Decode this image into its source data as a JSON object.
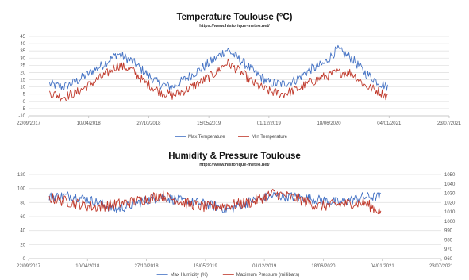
{
  "chart_data": [
    {
      "type": "line",
      "title": "Temperature Toulouse (°C)",
      "subtitle": "https://www.historique-meteo.net/",
      "x_ticks": [
        "22/09/2017",
        "10/04/2018",
        "27/10/2018",
        "15/05/2019",
        "01/12/2019",
        "18/06/2020",
        "04/01/2021",
        "23/07/2021"
      ],
      "xlim": [
        "2017-09-22",
        "2021-07-23"
      ],
      "y_ticks": [
        "-10",
        "-5",
        "0",
        "5",
        "10",
        "15",
        "20",
        "25",
        "30",
        "35",
        "40",
        "45"
      ],
      "ylim": [
        -10,
        45
      ],
      "legend_position": "bottom",
      "grid": "horizontal",
      "colors": {
        "max": "#4472c4",
        "min": "#c0392b"
      },
      "data_start": "2017-12-01",
      "data_end": "2021-01-01",
      "series": [
        {
          "name": "Max Temperature",
          "x": [
            "2017-12-01",
            "2018-01-15",
            "2018-03-01",
            "2018-04-15",
            "2018-06-01",
            "2018-07-15",
            "2018-09-01",
            "2018-10-15",
            "2018-12-01",
            "2019-01-15",
            "2019-03-01",
            "2019-04-15",
            "2019-06-01",
            "2019-07-15",
            "2019-09-01",
            "2019-10-15",
            "2019-12-01",
            "2020-01-15",
            "2020-03-01",
            "2020-04-15",
            "2020-06-01",
            "2020-07-15",
            "2020-09-01",
            "2020-10-15",
            "2020-12-01",
            "2021-01-01"
          ],
          "values": [
            12,
            10,
            14,
            20,
            26,
            33,
            28,
            20,
            12,
            10,
            16,
            22,
            29,
            36,
            28,
            20,
            13,
            12,
            15,
            22,
            26,
            36,
            30,
            20,
            13,
            10
          ]
        },
        {
          "name": "Min Temperature",
          "x": [
            "2017-12-01",
            "2018-01-15",
            "2018-03-01",
            "2018-04-15",
            "2018-06-01",
            "2018-07-15",
            "2018-09-01",
            "2018-10-15",
            "2018-12-01",
            "2019-01-15",
            "2019-03-01",
            "2019-04-15",
            "2019-06-01",
            "2019-07-15",
            "2019-09-01",
            "2019-10-15",
            "2019-12-01",
            "2020-01-15",
            "2020-03-01",
            "2020-04-15",
            "2020-06-01",
            "2020-07-15",
            "2020-09-01",
            "2020-10-15",
            "2020-12-01",
            "2021-01-01"
          ],
          "values": [
            6,
            3,
            6,
            12,
            18,
            25,
            22,
            13,
            7,
            4,
            8,
            13,
            19,
            27,
            20,
            12,
            7,
            5,
            8,
            13,
            17,
            20,
            20,
            11,
            7,
            3
          ]
        }
      ]
    },
    {
      "type": "line",
      "title": "Humidity & Pressure Toulouse",
      "subtitle": "https://www.historique-meteo.net/",
      "x_ticks": [
        "22/09/2017",
        "10/04/2018",
        "27/10/2018",
        "15/05/2019",
        "01/12/2019",
        "18/06/2020",
        "04/01/2021",
        "23/07/2021"
      ],
      "xlim": [
        "2017-09-22",
        "2021-07-23"
      ],
      "y_ticks": [
        "0",
        "20",
        "40",
        "60",
        "80",
        "100",
        "120"
      ],
      "ylim": [
        0,
        120
      ],
      "y2_ticks": [
        "960",
        "970",
        "980",
        "990",
        "1000",
        "1010",
        "1020",
        "1030",
        "1040",
        "1050"
      ],
      "y2lim": [
        960,
        1050
      ],
      "legend_position": "bottom",
      "grid": "horizontal",
      "colors": {
        "humidity": "#4472c4",
        "pressure": "#c0392b"
      },
      "data_start": "2017-12-01",
      "data_end": "2021-01-01",
      "series": [
        {
          "name": "Max Humidity (%)",
          "axis": "left",
          "x": [
            "2017-12-01",
            "2018-02-15",
            "2018-05-01",
            "2018-07-15",
            "2018-10-01",
            "2018-12-15",
            "2019-03-01",
            "2019-05-15",
            "2019-08-01",
            "2019-10-15",
            "2020-01-01",
            "2020-03-15",
            "2020-06-01",
            "2020-08-15",
            "2020-11-01",
            "2021-01-01"
          ],
          "values": [
            88,
            90,
            82,
            70,
            80,
            88,
            82,
            78,
            70,
            82,
            90,
            88,
            84,
            80,
            88,
            88
          ]
        },
        {
          "name": "Maximum Pressure (millibars)",
          "axis": "right",
          "x": [
            "2017-12-01",
            "2018-02-15",
            "2018-05-01",
            "2018-07-15",
            "2018-10-01",
            "2018-12-15",
            "2019-03-01",
            "2019-05-15",
            "2019-08-01",
            "2019-10-15",
            "2020-01-01",
            "2020-03-15",
            "2020-06-01",
            "2020-08-15",
            "2020-11-01",
            "2021-01-01"
          ],
          "values": [
            1025,
            1020,
            1015,
            1018,
            1022,
            1028,
            1020,
            1015,
            1017,
            1020,
            1030,
            1025,
            1016,
            1018,
            1020,
            1010
          ]
        }
      ]
    }
  ]
}
